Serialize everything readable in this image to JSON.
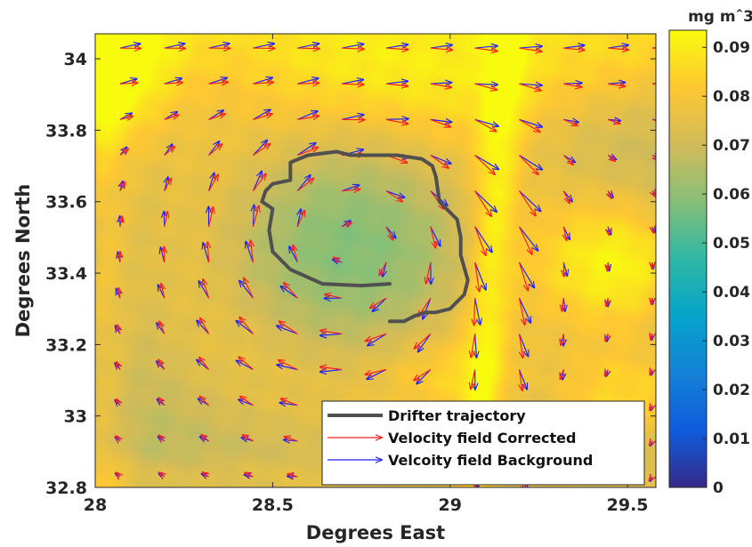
{
  "chart_data": {
    "type": "heatmap",
    "title": "",
    "xlabel": "Degrees East",
    "ylabel": "Degrees North",
    "xlim": [
      28.0,
      29.58
    ],
    "ylim": [
      32.8,
      34.07
    ],
    "x_ticks": [
      28,
      28.5,
      29,
      29.5
    ],
    "x_tick_labels": [
      "28",
      "28.5",
      "29",
      "29.5"
    ],
    "y_ticks": [
      32.8,
      33,
      33.2,
      33.4,
      33.6,
      33.8,
      34
    ],
    "y_tick_labels": [
      "32.8",
      "33",
      "33.2",
      "33.4",
      "33.6",
      "33.8",
      "34"
    ],
    "colorbar": {
      "unit_label": "mg mˆ3",
      "ticks": [
        0,
        0.01,
        0.02,
        0.03,
        0.04,
        0.05,
        0.06,
        0.07,
        0.08,
        0.09
      ],
      "tick_labels": [
        "0",
        "0.01",
        "0.02",
        "0.03",
        "0.04",
        "0.05",
        "0.06",
        "0.07",
        "0.08",
        "0.09"
      ],
      "range": [
        0,
        0.0935
      ],
      "colormap": "parula",
      "colors": [
        "#352a87",
        "#0f5cdd",
        "#1481d6",
        "#06a4ca",
        "#2eb7a4",
        "#87bf77",
        "#d1bb59",
        "#fec832",
        "#f9fb0e"
      ]
    },
    "field_description": "mesoscale anticyclonic eddy with low-chlorophyll core near 28.7E 33.45N and high-chlorophyll frontal band near 29.1E",
    "series": [
      {
        "name": "Drifter trajectory",
        "color": "#505050",
        "lon": [
          28.83,
          28.75,
          28.64,
          28.55,
          28.5,
          28.49,
          28.5,
          28.47,
          28.48,
          28.5,
          28.55,
          28.55,
          28.6,
          28.68,
          28.72,
          28.75,
          28.85,
          28.92,
          28.95,
          28.96,
          28.97,
          29.0,
          29.02,
          29.03,
          29.03,
          29.05,
          29.04,
          29.02,
          29.0,
          28.96,
          28.93,
          28.9,
          28.87,
          28.83
        ],
        "lat": [
          33.37,
          33.365,
          33.37,
          33.41,
          33.46,
          33.52,
          33.58,
          33.6,
          33.63,
          33.65,
          33.66,
          33.71,
          33.73,
          33.74,
          33.73,
          33.73,
          33.73,
          33.72,
          33.7,
          33.67,
          33.6,
          33.57,
          33.55,
          33.5,
          33.45,
          33.38,
          33.34,
          33.32,
          33.3,
          33.29,
          33.29,
          33.28,
          33.265,
          33.265
        ]
      },
      {
        "name": "Velocity field Corrected",
        "color": "#ff2020",
        "grid_lon_start": 28.07,
        "grid_lon_step": 0.125,
        "grid_lat_start": 32.83,
        "grid_lat_step": 0.1,
        "vector_model": "rotational eddy (center 28.72E 33.48N, R 0.30 deg) plus southward jet at 29.1E"
      },
      {
        "name": "Velcoity field Background",
        "color": "#2020ff",
        "grid_lon_start": 28.07,
        "grid_lon_step": 0.125,
        "grid_lat_start": 32.83,
        "grid_lat_step": 0.1,
        "vector_model": "same field with small angular offset"
      }
    ],
    "legend": {
      "position": "bottom-right",
      "entries": [
        "Drifter trajectory",
        "Velocity field Corrected",
        "Velcoity field Background"
      ]
    },
    "grid": false
  }
}
